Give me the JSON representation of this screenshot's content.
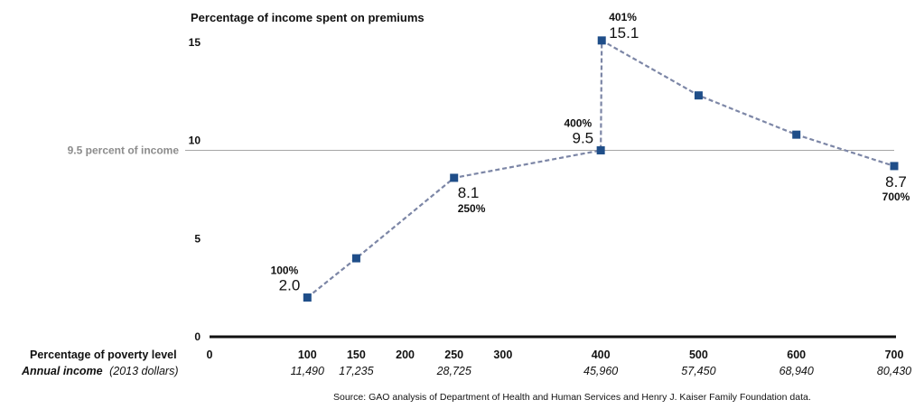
{
  "chart_data": {
    "type": "line",
    "title": "Percentage of income spent on premiums",
    "ylim": [
      0,
      15
    ],
    "yticks": [
      0,
      5,
      10,
      15
    ],
    "xlim": [
      0,
      700
    ],
    "xticks": [
      0,
      100,
      150,
      200,
      250,
      300,
      400,
      500,
      600,
      700
    ],
    "x_axis_label": "Percentage of poverty level",
    "income_row_label": "Annual income",
    "income_row_label_suffix": "(2013 dollars)",
    "income": [
      {
        "x": 100,
        "label": "11,490"
      },
      {
        "x": 150,
        "label": "17,235"
      },
      {
        "x": 250,
        "label": "28,725"
      },
      {
        "x": 400,
        "label": "45,960"
      },
      {
        "x": 500,
        "label": "57,450"
      },
      {
        "x": 600,
        "label": "68,940"
      },
      {
        "x": 700,
        "label": "80,430"
      }
    ],
    "series": [
      {
        "points": [
          {
            "x": 100,
            "y": 2.0
          },
          {
            "x": 150,
            "y": 4.0
          },
          {
            "x": 250,
            "y": 8.1
          },
          {
            "x": 400,
            "y": 9.5
          },
          {
            "x": 401,
            "y": 15.1
          },
          {
            "x": 500,
            "y": 12.3
          },
          {
            "x": 600,
            "y": 10.3
          },
          {
            "x": 700,
            "y": 8.7
          }
        ]
      }
    ],
    "point_labels": [
      {
        "x": 100,
        "y": 2.0,
        "pct": "100%",
        "value": "2.0",
        "placement": "above-left"
      },
      {
        "x": 250,
        "y": 8.1,
        "pct": "250%",
        "value": "8.1",
        "placement": "below-right"
      },
      {
        "x": 400,
        "y": 9.5,
        "pct": "400%",
        "value": "9.5",
        "placement": "above-left"
      },
      {
        "x": 401,
        "y": 15.1,
        "pct": "401%",
        "value": "15.1",
        "placement": "above-right"
      },
      {
        "x": 700,
        "y": 8.7,
        "pct": "700%",
        "value": "8.7",
        "placement": "below"
      }
    ],
    "reference_line": {
      "y": 9.5,
      "label": "9.5 percent of income"
    },
    "source": "Source: GAO analysis of Department of Health and Human Services and Henry J. Kaiser Family Foundation data.",
    "colors": {
      "marker": "#1f4e89",
      "line": "#7c86a6",
      "reference": "#a6a6a6",
      "reference_label": "#8c8c8c",
      "axis": "#111111"
    }
  }
}
